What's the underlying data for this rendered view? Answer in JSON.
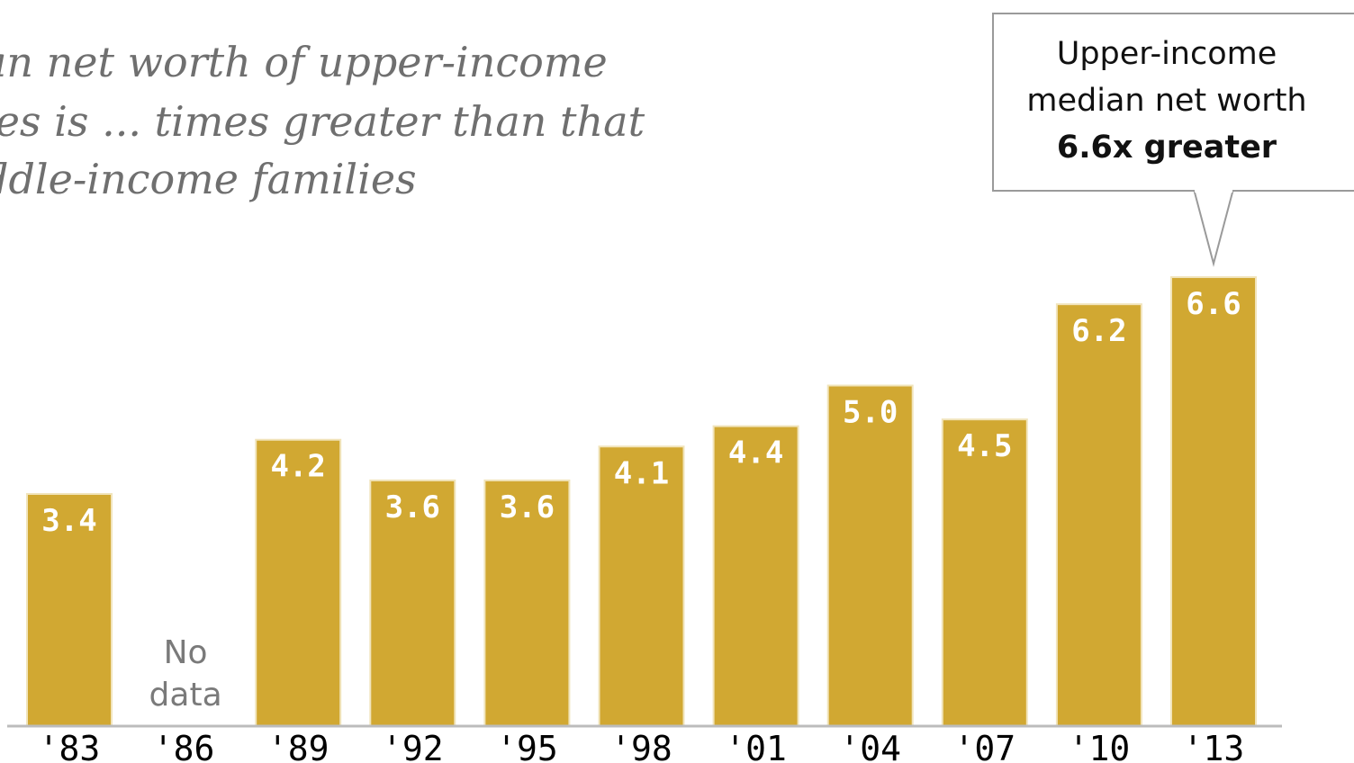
{
  "title_lines": [
    "an net worth of upper-income",
    "ies is ... times greater than that",
    "ddle-income families"
  ],
  "callout": {
    "line1": "Upper-income",
    "line2": "median net worth",
    "line3": "6.6x greater"
  },
  "colors": {
    "bar": "#d1a832",
    "bar_highlight": "#f1e4bb",
    "axis": "#bcbcbc"
  },
  "chart_data": {
    "type": "bar",
    "categories": [
      "'83",
      "'86",
      "'89",
      "'92",
      "'95",
      "'98",
      "'01",
      "'04",
      "'07",
      "'10",
      "'13"
    ],
    "values": [
      3.4,
      null,
      4.2,
      3.6,
      3.6,
      4.1,
      4.4,
      5.0,
      4.5,
      6.2,
      6.6
    ],
    "value_labels": [
      "3.4",
      "",
      "4.2",
      "3.6",
      "3.6",
      "4.1",
      "4.4",
      "5.0",
      "4.5",
      "6.2",
      "6.6"
    ],
    "missing_label_lines": [
      "No",
      "data"
    ],
    "ylim": [
      0,
      6.6
    ],
    "grid": false,
    "legend": "none"
  }
}
